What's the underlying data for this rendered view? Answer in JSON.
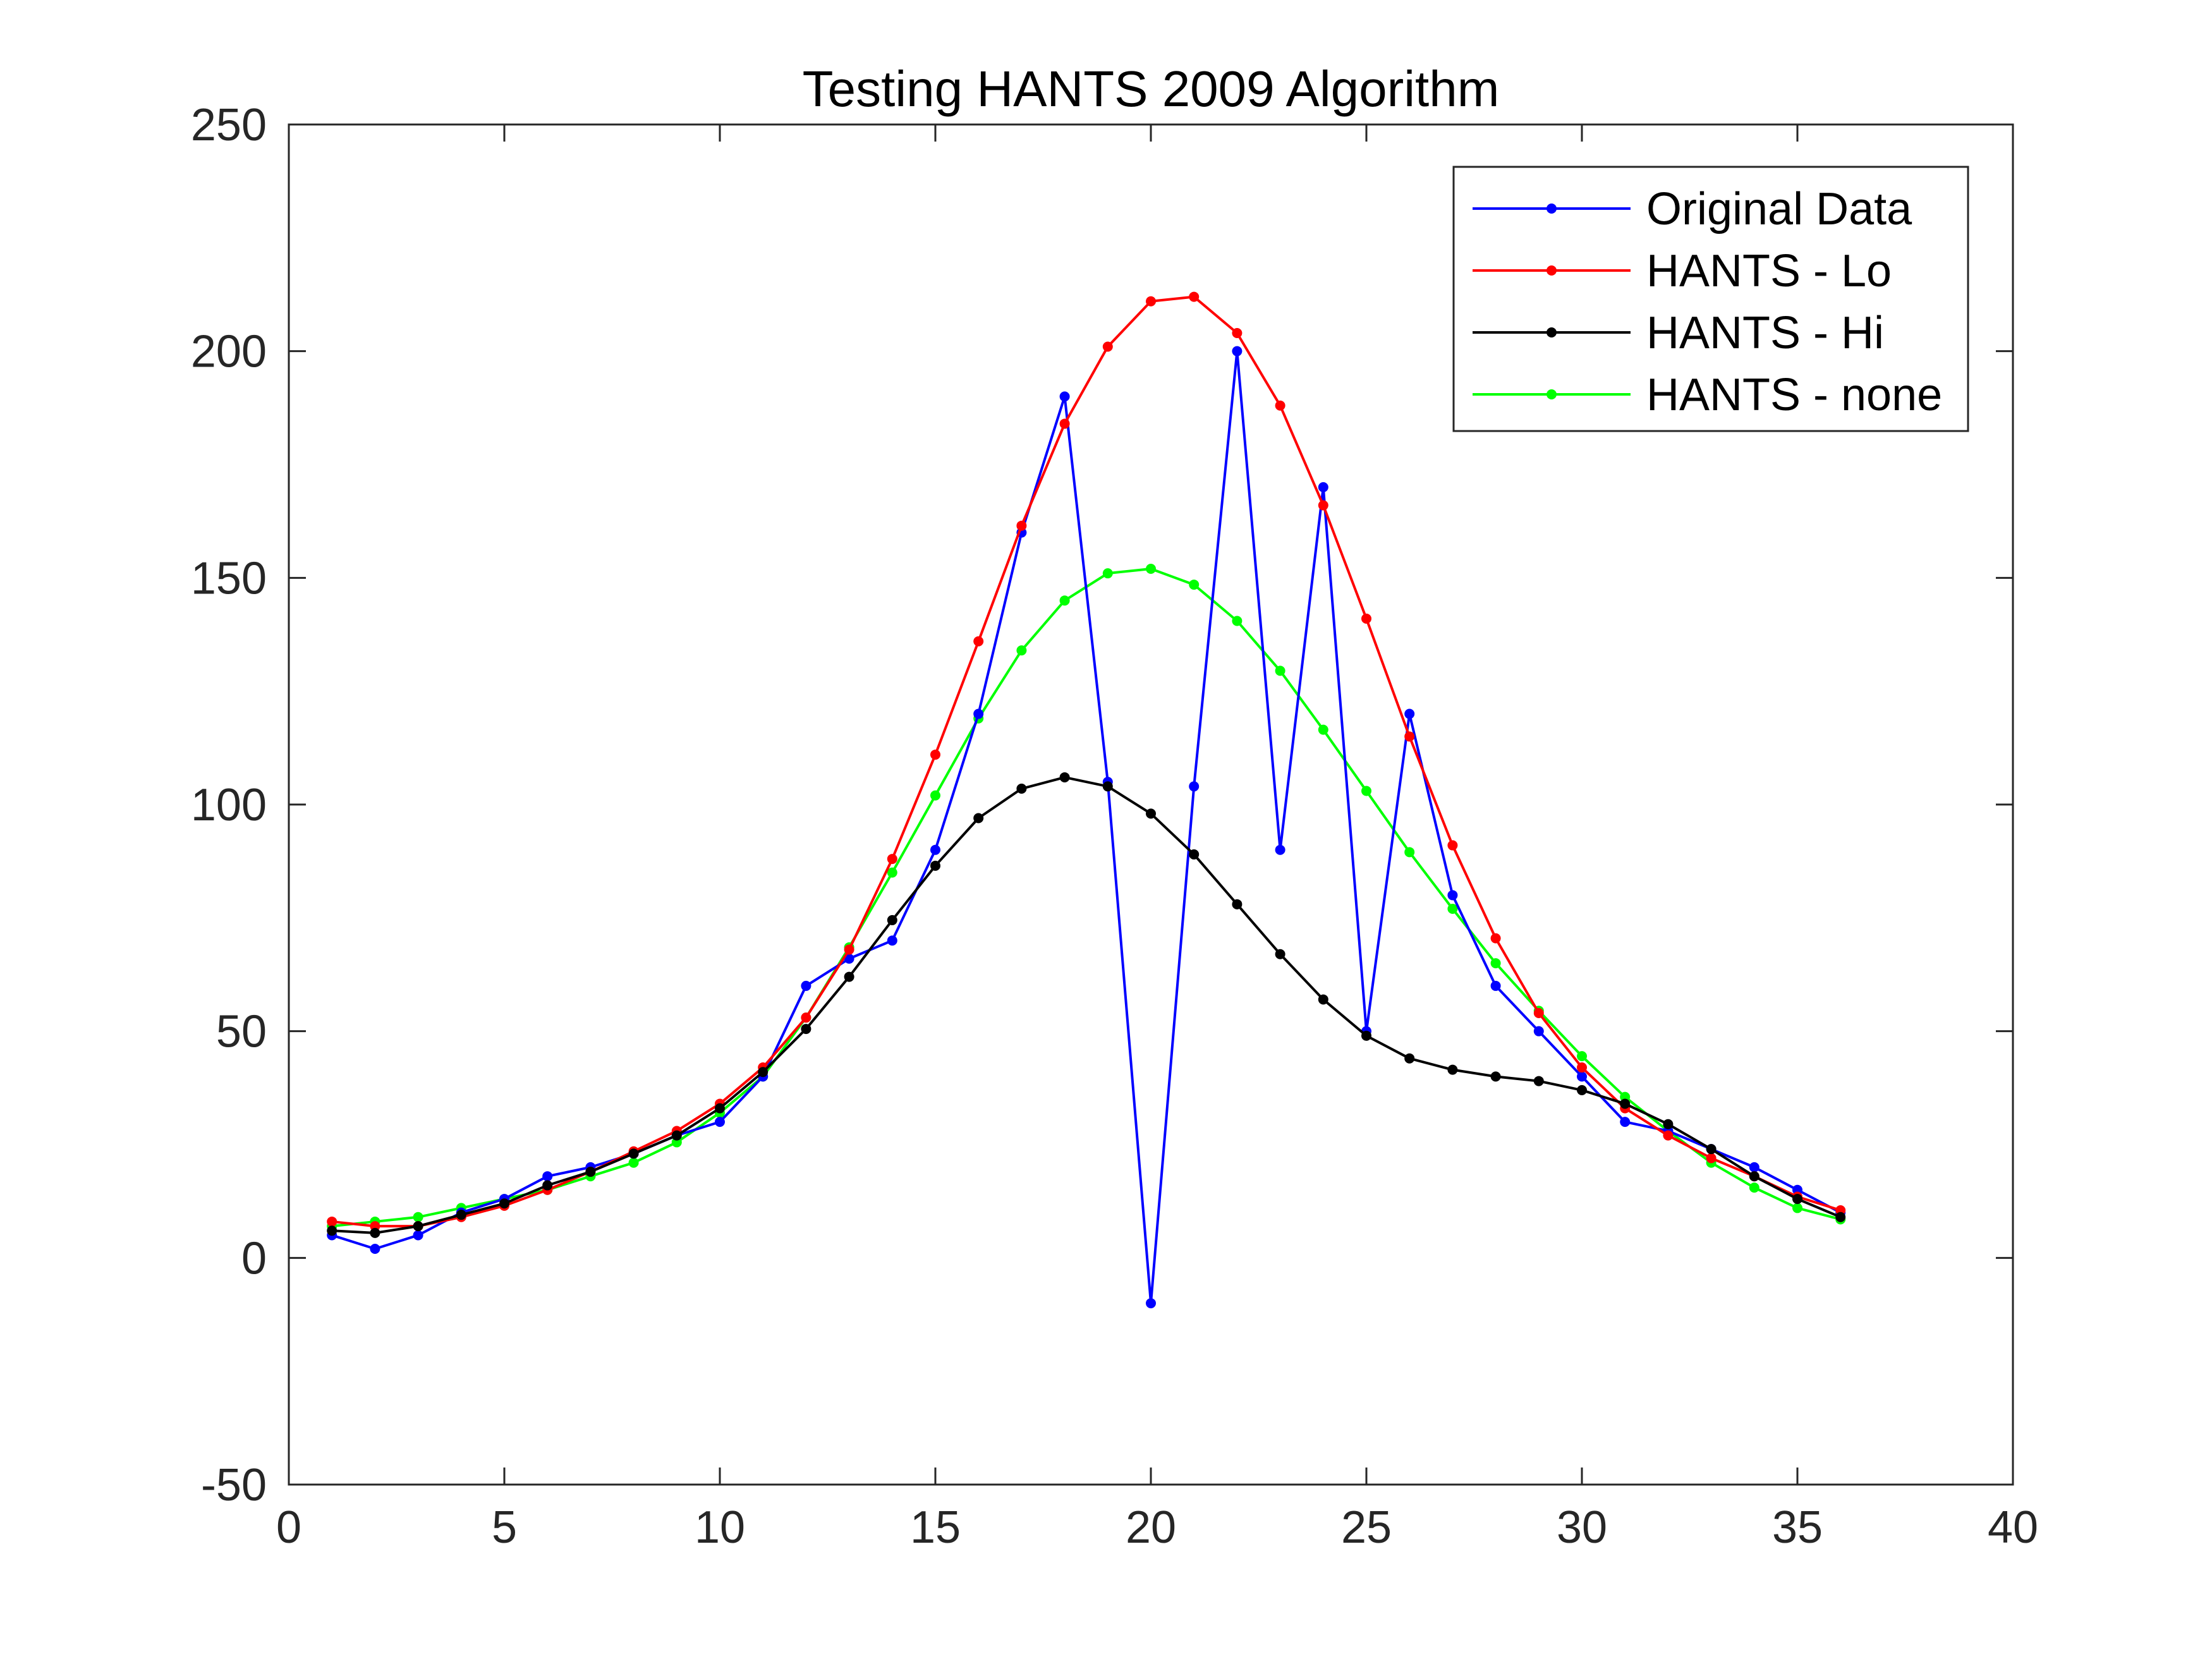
{
  "chart_data": {
    "type": "line",
    "title": "Testing HANTS 2009 Algorithm",
    "xlabel": "",
    "ylabel": "",
    "xlim": [
      0,
      40
    ],
    "ylim": [
      -50,
      250
    ],
    "xticks": [
      0,
      5,
      10,
      15,
      20,
      25,
      30,
      35,
      40
    ],
    "yticks": [
      -50,
      0,
      50,
      100,
      150,
      200,
      250
    ],
    "xtick_labels": [
      "0",
      "5",
      "10",
      "15",
      "20",
      "25",
      "30",
      "35",
      "40"
    ],
    "ytick_labels": [
      "-50",
      "0",
      "50",
      "100",
      "150",
      "200",
      "250"
    ],
    "grid": false,
    "legend_position": "top-right",
    "x": [
      1,
      2,
      3,
      4,
      5,
      6,
      7,
      8,
      9,
      10,
      11,
      12,
      13,
      14,
      15,
      16,
      17,
      18,
      19,
      20,
      21,
      22,
      23,
      24,
      25,
      26,
      27,
      28,
      29,
      30,
      31,
      32,
      33,
      34,
      35,
      36
    ],
    "series": [
      {
        "name": "Original Data",
        "color": "#0000ff",
        "values": [
          5,
          2,
          5,
          10,
          13,
          18,
          20,
          23,
          27,
          30,
          40,
          60,
          66,
          70,
          90,
          120,
          160,
          190,
          105,
          -10,
          104,
          200,
          90,
          170,
          50,
          120,
          80,
          60,
          50,
          40,
          30,
          28,
          24,
          20,
          15,
          10
        ]
      },
      {
        "name": "HANTS - Lo",
        "color": "#ff0000",
        "values": [
          8,
          7,
          7,
          9,
          11.5,
          15,
          19,
          23.5,
          28,
          34,
          42,
          53,
          68,
          88,
          111,
          136,
          161.5,
          184,
          201,
          211,
          212,
          204,
          188,
          166,
          141,
          115,
          91,
          70.5,
          54,
          42,
          33,
          27,
          22,
          18,
          13.5,
          10.5
        ]
      },
      {
        "name": "HANTS - Hi",
        "color": "#000000",
        "values": [
          6,
          5.5,
          7,
          9.5,
          12,
          16,
          19,
          23,
          27,
          33,
          41,
          50.5,
          62,
          74.5,
          86.5,
          97,
          103.5,
          106,
          104,
          98,
          89,
          78,
          67,
          57,
          49,
          44,
          41.5,
          40,
          39,
          37,
          34,
          29.5,
          24,
          18,
          13,
          9
        ]
      },
      {
        "name": "HANTS - none",
        "color": "#00ff00",
        "values": [
          7,
          8,
          9,
          11,
          13,
          15,
          18,
          21,
          25.5,
          32,
          40,
          53,
          68.5,
          85,
          102,
          119,
          134,
          145,
          151,
          152,
          148.5,
          140.5,
          129.5,
          116.5,
          103,
          89.5,
          77,
          65,
          54.5,
          44.5,
          35.5,
          28,
          21,
          15.5,
          11,
          8.5
        ]
      }
    ]
  }
}
